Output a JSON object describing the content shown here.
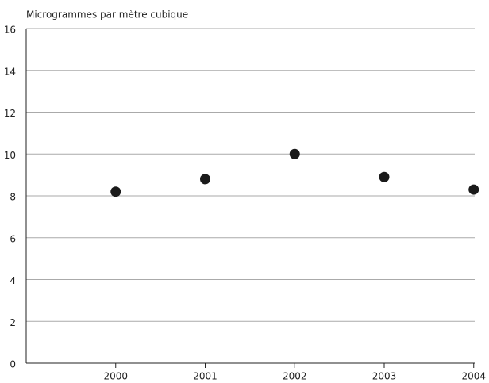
{
  "chart_data": {
    "type": "scatter",
    "y_axis_label": "Microgrammes par mètre cubique",
    "categories": [
      "2000",
      "2001",
      "2002",
      "2003",
      "2004"
    ],
    "values": [
      8.2,
      8.8,
      10.0,
      8.9,
      8.3
    ],
    "color": "#1a1a1a",
    "ylim": [
      0,
      16
    ],
    "yticks": [
      0,
      2,
      4,
      6,
      8,
      10,
      12,
      14,
      16
    ],
    "grid": true
  }
}
